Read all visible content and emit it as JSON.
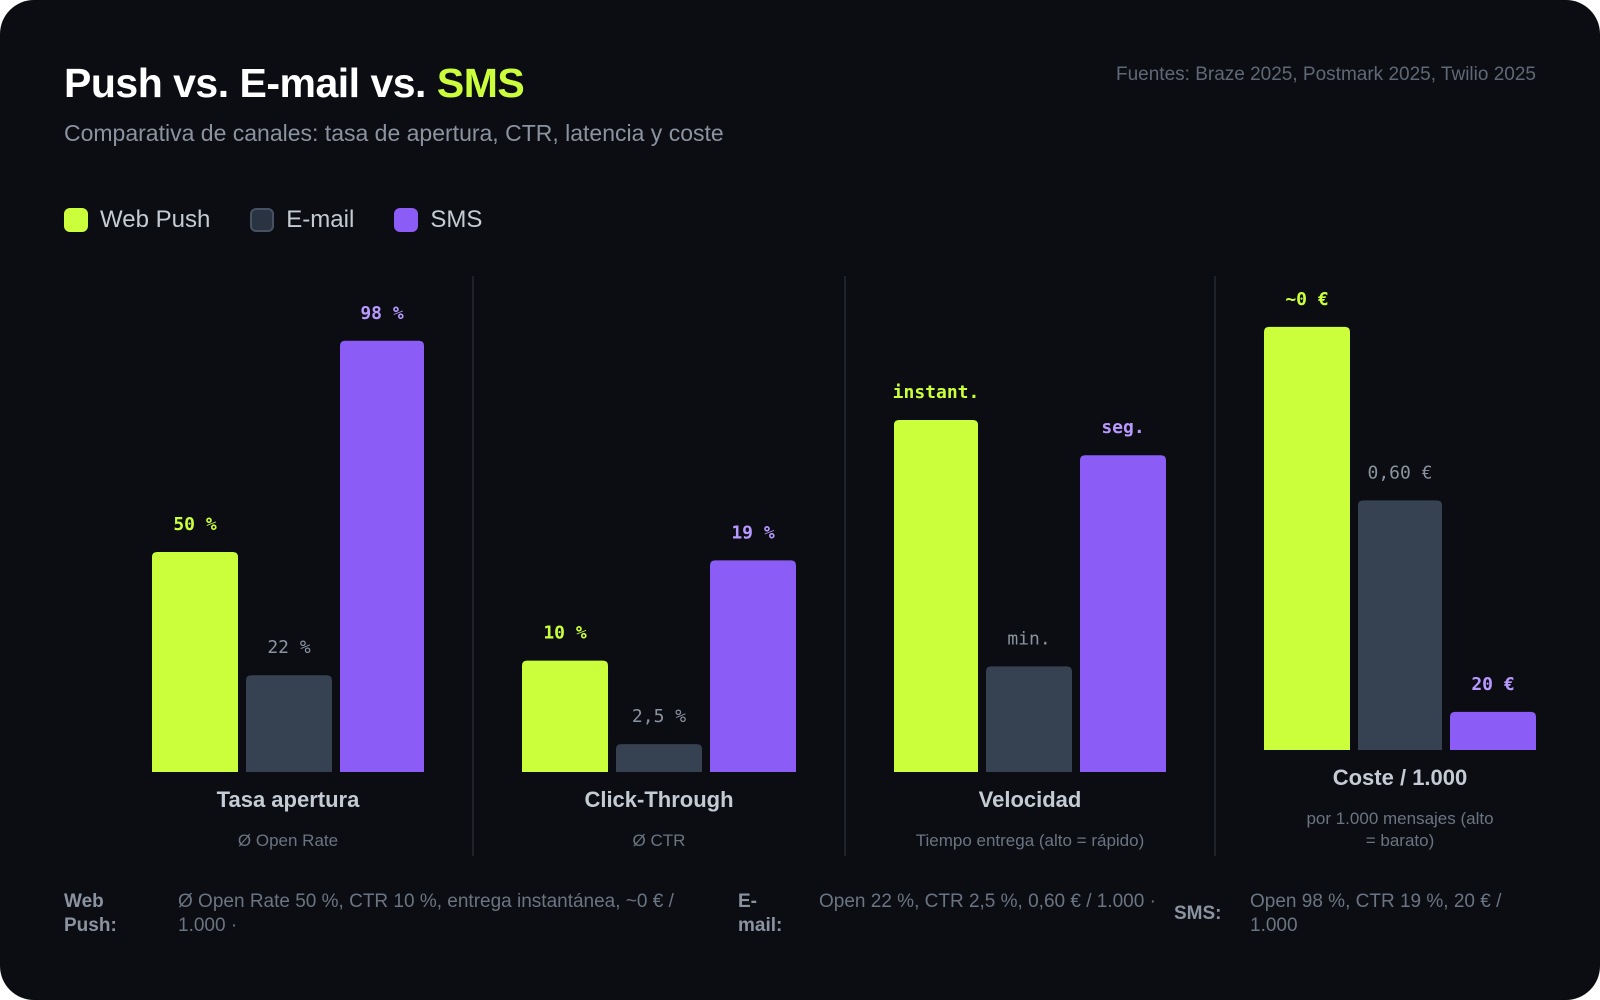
{
  "header": {
    "title_main": "Push vs. E-mail vs. ",
    "title_accent": "SMS",
    "subtitle": "Comparativa de canales: tasa de apertura, CTR, latencia y coste",
    "sources": "Fuentes: Braze 2025, Postmark 2025, Twilio 2025"
  },
  "legend": [
    {
      "label": "Web Push",
      "color": "#cbff3c"
    },
    {
      "label": "E-mail",
      "color": "#364152"
    },
    {
      "label": "SMS",
      "color": "#8b5cf6"
    }
  ],
  "colors": {
    "web_push": "#cbff3c",
    "email": "#364152",
    "email_label": "#8b93a1",
    "sms": "#8b5cf6",
    "sms_label": "#b899ff",
    "background": "#0b0d12",
    "divider": "#252a33"
  },
  "chart_data": [
    {
      "type": "bar",
      "title": "Tasa apertura",
      "subtitle": "Ø Open Rate",
      "categories": [
        "Web Push",
        "E-mail",
        "SMS"
      ],
      "values": [
        50,
        22,
        98
      ],
      "labels": [
        "50 %",
        "22 %",
        "98 %"
      ],
      "ylim": [
        0,
        100
      ]
    },
    {
      "type": "bar",
      "title": "Click-Through",
      "subtitle": "Ø CTR",
      "categories": [
        "Web Push",
        "E-mail",
        "SMS"
      ],
      "values": [
        10,
        2.5,
        19
      ],
      "labels": [
        "10 %",
        "2,5 %",
        "19 %"
      ],
      "ylim": [
        0,
        39.5
      ]
    },
    {
      "type": "bar",
      "title": "Velocidad",
      "subtitle": "Tiempo entrega (alto = rápido)",
      "categories": [
        "Web Push",
        "E-mail",
        "SMS"
      ],
      "values": [
        100,
        30,
        90
      ],
      "labels": [
        "instant.",
        "min.",
        "seg."
      ],
      "ylim": [
        0,
        125
      ]
    },
    {
      "type": "bar",
      "title": "Coste / 1.000",
      "subtitle": "por 1.000 mensajes (alto = barato)",
      "categories": [
        "Web Push",
        "E-mail",
        "SMS"
      ],
      "values": [
        100,
        59,
        9
      ],
      "labels": [
        "~0 €",
        "0,60 €",
        "20 €"
      ],
      "ylim": [
        0,
        104
      ]
    }
  ],
  "footer": [
    {
      "key": "Web Push:",
      "value": "Ø Open Rate 50 %, CTR 10 %, entrega instantánea, ~0 € / 1.000  ·"
    },
    {
      "key": "E-mail:",
      "value": "Open 22 %, CTR 2,5 %, 0,60 € / 1.000  ·"
    },
    {
      "key": "SMS:",
      "value": "Open 98 %, CTR 19 %, 20 € / 1.000"
    }
  ]
}
